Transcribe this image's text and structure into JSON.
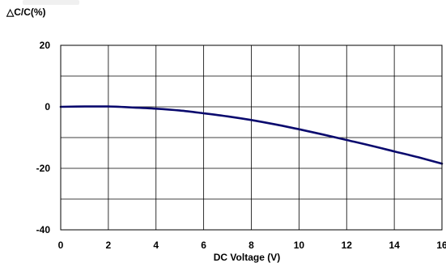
{
  "chart_data": {
    "type": "line",
    "ylabel": "△C/C(%)",
    "xlabel": "DC Voltage (V)",
    "xlim": [
      0,
      16
    ],
    "ylim": [
      -40,
      20
    ],
    "x_ticks": [
      0,
      2,
      4,
      6,
      8,
      10,
      12,
      14,
      16
    ],
    "y_ticks": [
      20,
      0,
      -20,
      -40
    ],
    "x_tick_labels": [
      "0",
      "2",
      "4",
      "6",
      "8",
      "10",
      "12",
      "14",
      "16"
    ],
    "y_tick_labels": [
      "20",
      "0",
      "-20",
      "-40"
    ],
    "x_grid_step": 2,
    "y_grid_step": 10,
    "grid": true,
    "series": [
      {
        "color": "#0a0a6e",
        "x": [
          0,
          1,
          2,
          3,
          4,
          5,
          6,
          7,
          8,
          9,
          10,
          11,
          12,
          13,
          14,
          15,
          16
        ],
        "y": [
          0,
          0.1,
          0.1,
          -0.2,
          -0.6,
          -1.2,
          -2.1,
          -3.1,
          -4.3,
          -5.7,
          -7.3,
          -9.0,
          -10.8,
          -12.6,
          -14.5,
          -16.4,
          -18.5
        ]
      }
    ]
  }
}
